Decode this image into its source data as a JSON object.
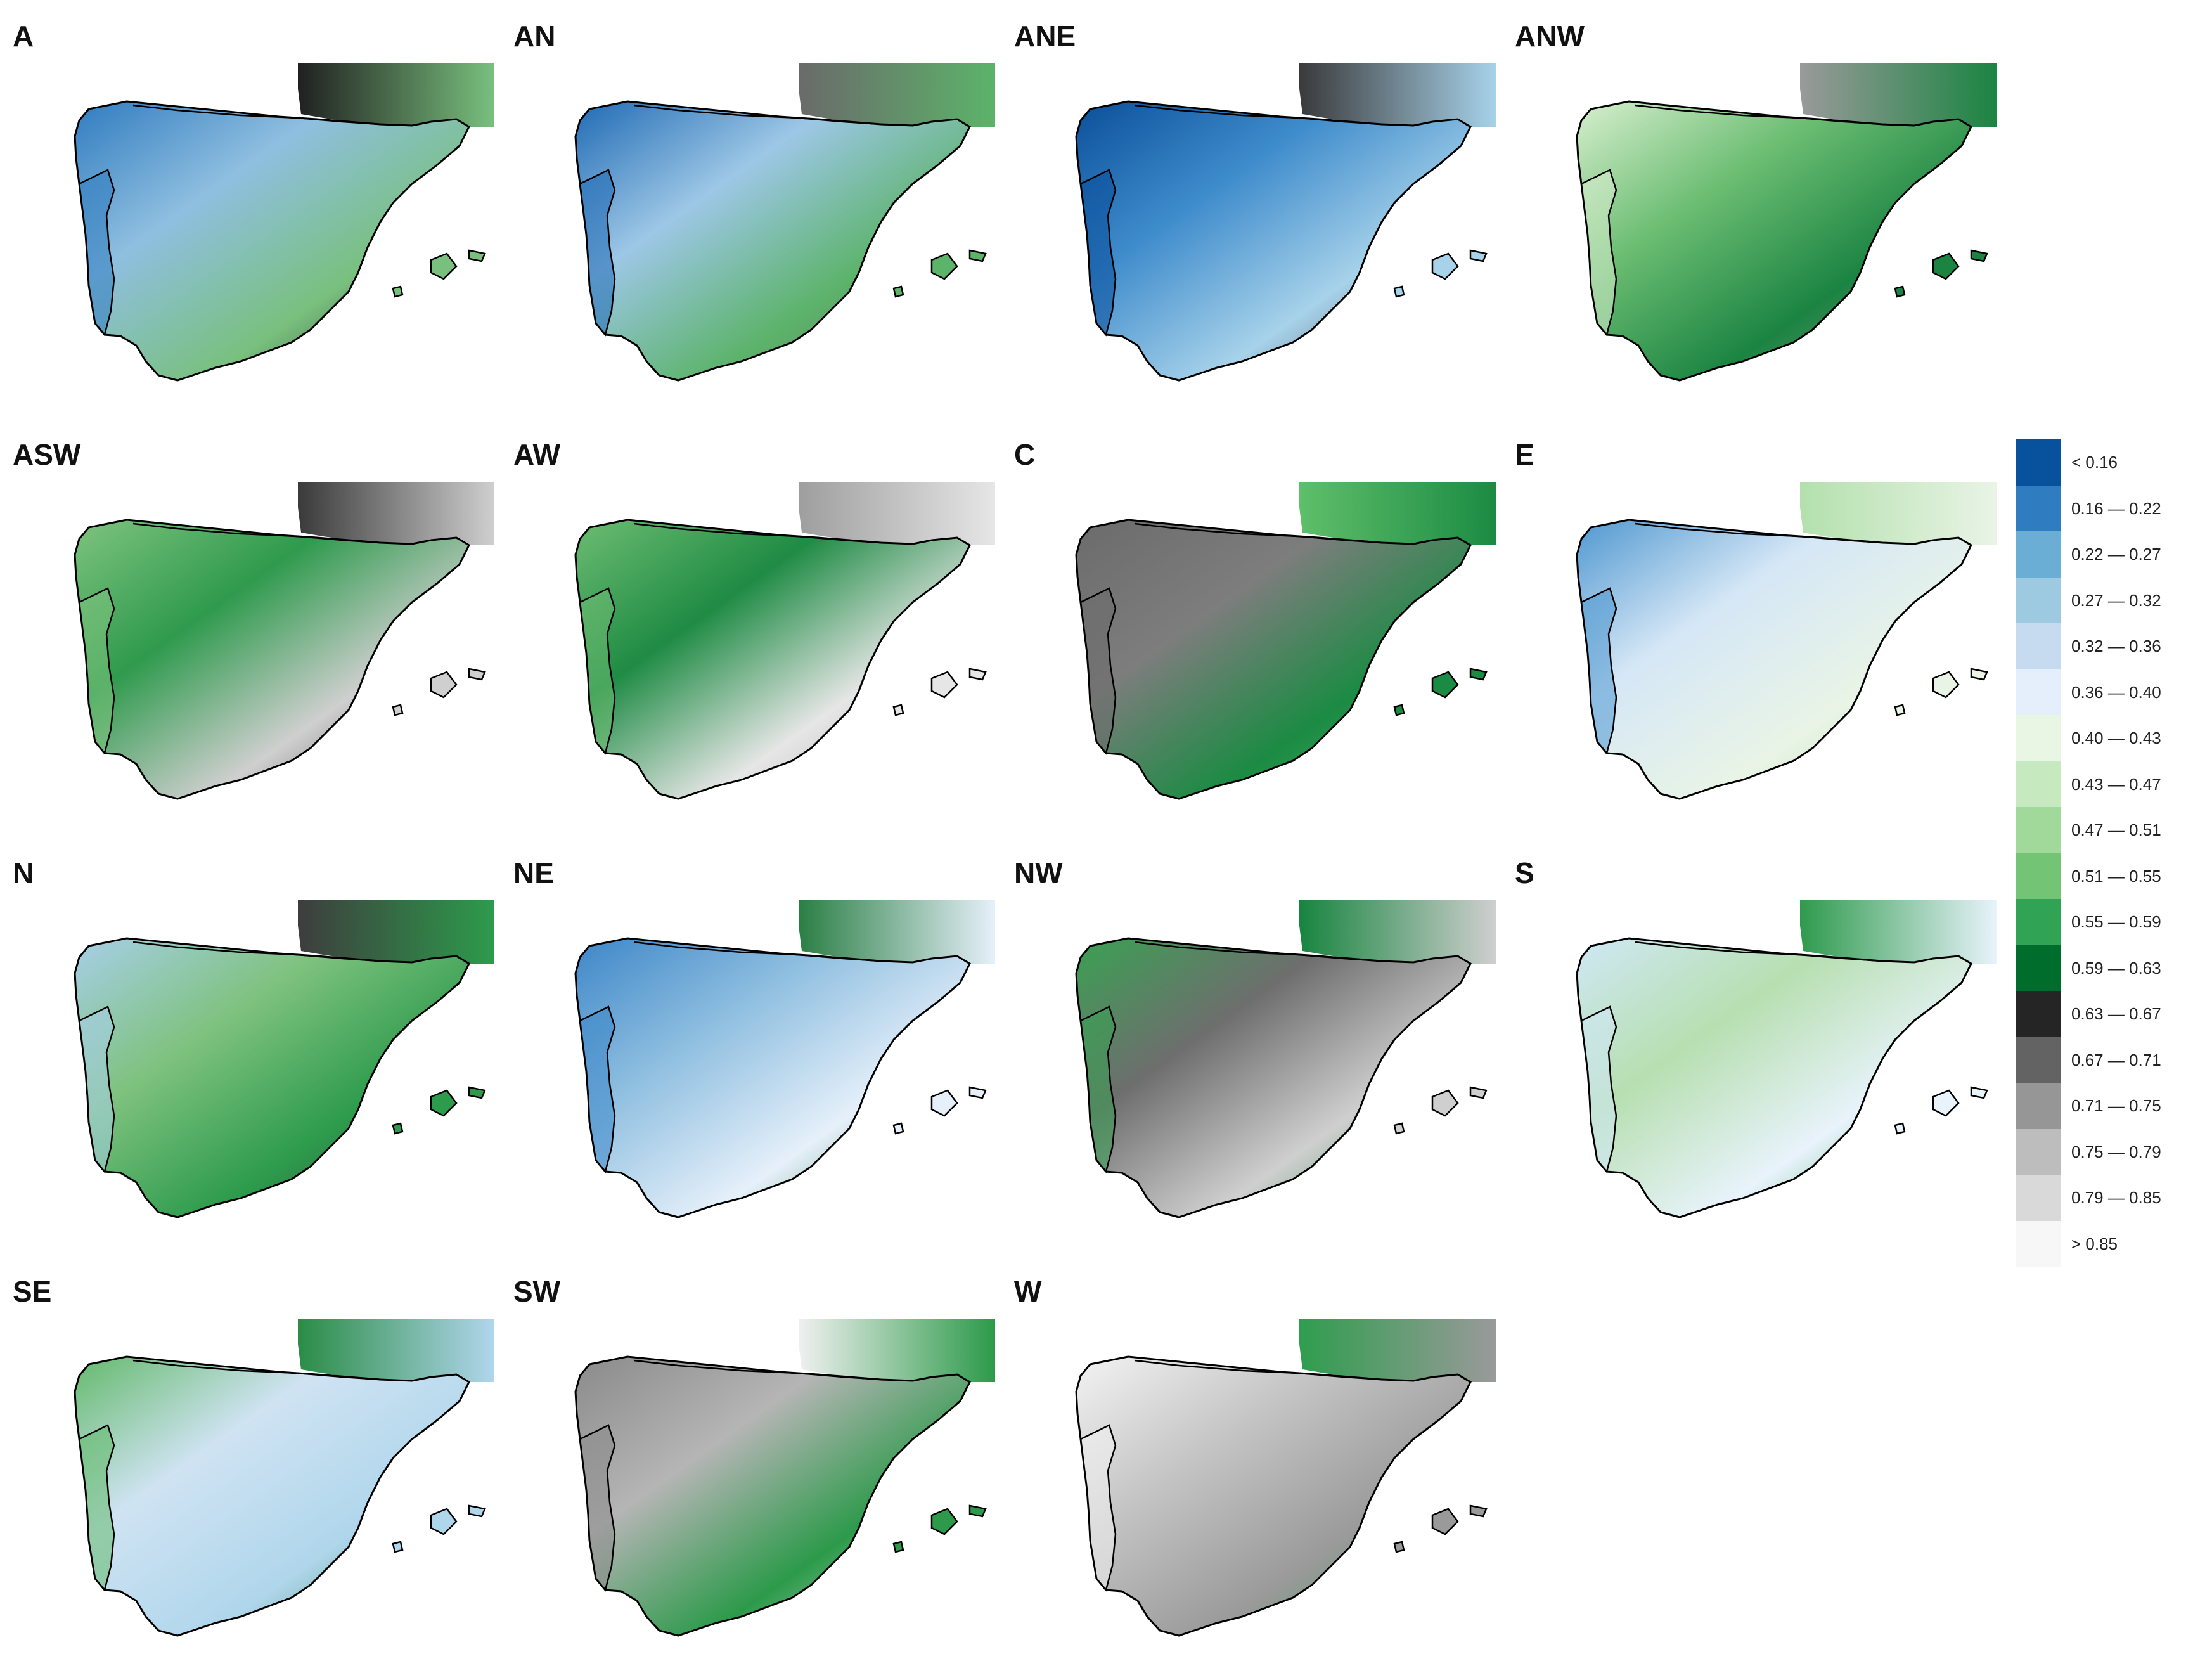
{
  "colors": {
    "blue_dark": "#08519c",
    "blue_mid": "#4a90c8",
    "blue_light": "#a9cde6",
    "blue_pale": "#e4eef9",
    "green_pale": "#d8efd2",
    "green_mid": "#6dbf73",
    "green_dark": "#137a3a",
    "gray_dark": "#4a4a4a",
    "gray_mid": "#8c8c8c",
    "gray_light": "#c8c8c8",
    "gray_pale": "#ececec",
    "border": "#000000"
  },
  "panels": [
    {
      "label": "A",
      "fill": [
        "#2f7bbf",
        "#8fbfe0",
        "#79c07e",
        "#202020"
      ]
    },
    {
      "label": "AN",
      "fill": [
        "#1f6ab4",
        "#9dc7e6",
        "#5cb36a",
        "#6a6a6a"
      ]
    },
    {
      "label": "ANE",
      "fill": [
        "#0a4f9a",
        "#3f8ccc",
        "#a7d2ea",
        "#3a3a3a"
      ]
    },
    {
      "label": "ANW",
      "fill": [
        "#d8efcf",
        "#6bbd72",
        "#1b8442",
        "#9a9a9a"
      ]
    },
    {
      "label": "ASW",
      "fill": [
        "#7fc47f",
        "#2f9a4d",
        "#cfcfcf",
        "#3a3a3a"
      ]
    },
    {
      "label": "AW",
      "fill": [
        "#6dbd72",
        "#1f8b44",
        "#e6e6e6",
        "#9e9e9e"
      ]
    },
    {
      "label": "C",
      "fill": [
        "#6b6b6b",
        "#7d7d7d",
        "#1b8b43",
        "#5fbf6a"
      ]
    },
    {
      "label": "E",
      "fill": [
        "#4f97d0",
        "#d5e7f6",
        "#e9f4e6",
        "#b3e0ad"
      ]
    },
    {
      "label": "N",
      "fill": [
        "#a7cfe8",
        "#7fc27f",
        "#2d9b4c",
        "#3d3d3d"
      ]
    },
    {
      "label": "NE",
      "fill": [
        "#3d86c8",
        "#8fbfe0",
        "#e6f0fa",
        "#2a7e44"
      ]
    },
    {
      "label": "NW",
      "fill": [
        "#3aa153",
        "#6e6e6e",
        "#cfcfcf",
        "#17843f"
      ]
    },
    {
      "label": "S",
      "fill": [
        "#cfe8f5",
        "#b7dfb1",
        "#e8f3fb",
        "#2f9a4d"
      ]
    },
    {
      "label": "SE",
      "fill": [
        "#63b96b",
        "#cfe3f2",
        "#b0d6ec",
        "#2a8c45"
      ]
    },
    {
      "label": "SW",
      "fill": [
        "#8a8a8a",
        "#b5b5b5",
        "#2c9a4a",
        "#f0f0f0"
      ]
    },
    {
      "label": "W",
      "fill": [
        "#f3f3f3",
        "#c4c4c4",
        "#9a9a9a",
        "#2f9d4e"
      ]
    }
  ],
  "legend": [
    {
      "label": "< 0.16",
      "color": "#08519c"
    },
    {
      "label": "0.16 — 0.22",
      "color": "#2f7dc0"
    },
    {
      "label": "0.22 — 0.27",
      "color": "#6aaed6"
    },
    {
      "label": "0.27 — 0.32",
      "color": "#9ecae1"
    },
    {
      "label": "0.32 — 0.36",
      "color": "#c6dbef"
    },
    {
      "label": "0.36 — 0.40",
      "color": "#e5eefb"
    },
    {
      "label": "0.40 — 0.43",
      "color": "#e8f6e3"
    },
    {
      "label": "0.43 — 0.47",
      "color": "#c7e9c0"
    },
    {
      "label": "0.47 — 0.51",
      "color": "#a1d99b"
    },
    {
      "label": "0.51 — 0.55",
      "color": "#74c476"
    },
    {
      "label": "0.55 — 0.59",
      "color": "#31a354"
    },
    {
      "label": "0.59 — 0.63",
      "color": "#006d2c"
    },
    {
      "label": "0.63 — 0.67",
      "color": "#252525"
    },
    {
      "label": "0.67 — 0.71",
      "color": "#636363"
    },
    {
      "label": "0.71 — 0.75",
      "color": "#969696"
    },
    {
      "label": "0.75 — 0.79",
      "color": "#bdbdbd"
    },
    {
      "label": "0.79 — 0.85",
      "color": "#d9d9d9"
    },
    {
      "label": "> 0.85",
      "color": "#f7f7f7"
    }
  ]
}
